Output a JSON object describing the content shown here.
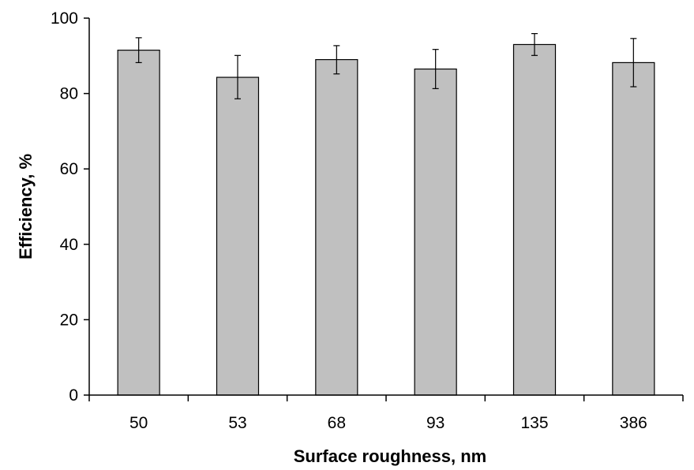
{
  "chart_data": {
    "type": "bar",
    "title": "",
    "xlabel": "Surface roughness, nm",
    "ylabel": "Efficiency, %",
    "categories": [
      "50",
      "53",
      "68",
      "93",
      "135",
      "386"
    ],
    "values": [
      91.5,
      84.3,
      89.0,
      86.5,
      93.0,
      88.2
    ],
    "error_upper": [
      94.8,
      90.1,
      92.7,
      91.7,
      95.9,
      94.6
    ],
    "error_lower": [
      88.2,
      78.6,
      85.2,
      81.3,
      90.1,
      81.8
    ],
    "ylim": [
      0,
      100
    ],
    "yticks": [
      0,
      20,
      40,
      60,
      80,
      100
    ],
    "grid": false,
    "colors": {
      "bar_fill": "#c0c0c0",
      "bar_stroke": "#000000",
      "axis": "#000000"
    }
  }
}
